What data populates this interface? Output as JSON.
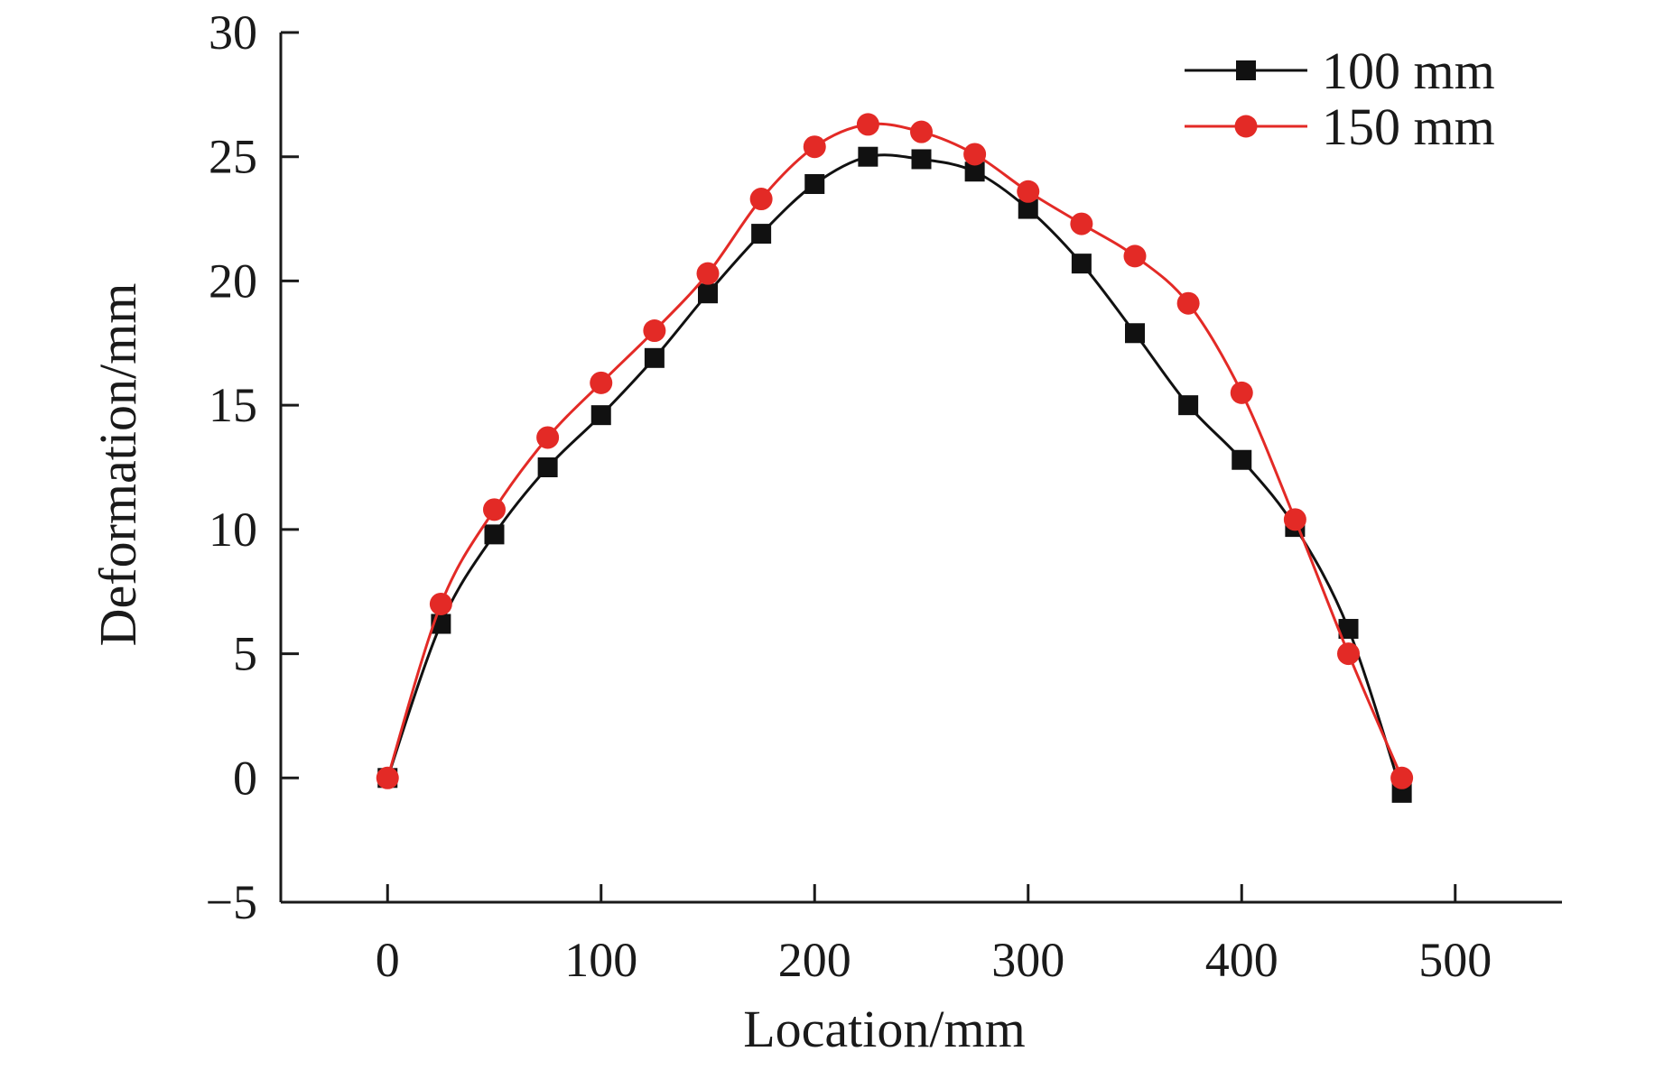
{
  "chart_data": {
    "type": "line",
    "title": "",
    "xlabel": "Location/mm",
    "ylabel": "Deformation/mm",
    "xlim": [
      -50,
      550
    ],
    "ylim": [
      -5,
      30
    ],
    "xticks": [
      0,
      100,
      200,
      300,
      400,
      500
    ],
    "yticks": [
      -5,
      0,
      5,
      10,
      15,
      20,
      25,
      30
    ],
    "xtick_labels": [
      "0",
      "100",
      "200",
      "300",
      "400",
      "500"
    ],
    "ytick_labels": [
      "−5",
      "0",
      "5",
      "10",
      "15",
      "20",
      "25",
      "30"
    ],
    "grid": false,
    "legend_position": "top-right",
    "x": [
      0,
      25,
      50,
      75,
      100,
      125,
      150,
      175,
      200,
      225,
      250,
      275,
      300,
      325,
      350,
      375,
      400,
      425,
      450,
      475
    ],
    "series": [
      {
        "name": "100 mm",
        "color": "#111111",
        "marker": "square",
        "values": [
          0.0,
          6.2,
          9.8,
          12.5,
          14.6,
          16.9,
          19.5,
          21.9,
          23.9,
          25.0,
          24.9,
          24.4,
          22.9,
          20.7,
          17.9,
          15.0,
          12.8,
          10.1,
          6.0,
          -0.6
        ]
      },
      {
        "name": "150 mm",
        "color": "#e32a26",
        "marker": "circle",
        "values": [
          0.0,
          7.0,
          10.8,
          13.7,
          15.9,
          18.0,
          20.3,
          23.3,
          25.4,
          26.3,
          26.0,
          25.1,
          23.6,
          22.3,
          21.0,
          19.1,
          15.5,
          10.4,
          5.0,
          0.0
        ]
      }
    ]
  }
}
